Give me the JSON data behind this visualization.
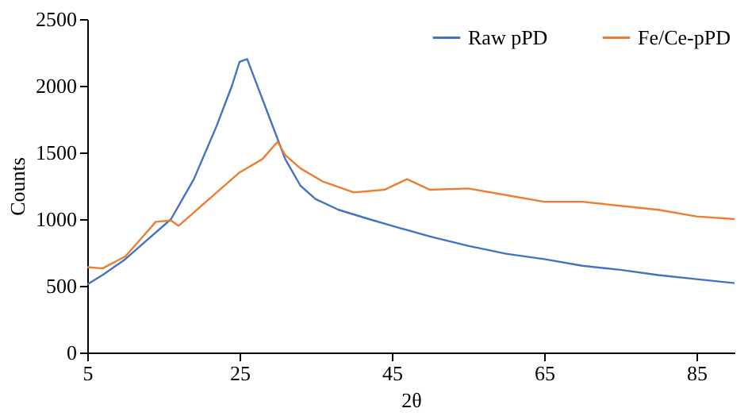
{
  "chart_data": {
    "type": "line",
    "xlabel": "2θ",
    "ylabel": "Counts",
    "xlim": [
      5,
      90
    ],
    "xticks": [
      5,
      25,
      45,
      65,
      85
    ],
    "ylim": [
      0,
      2500
    ],
    "yticks": [
      0,
      500,
      1000,
      1500,
      2000,
      2500
    ],
    "grid": false,
    "legend": "top right",
    "marker": "none",
    "line_style": "solid",
    "series": [
      {
        "name": "Raw pPD",
        "color": "#4472c4",
        "x": [
          5,
          7,
          10,
          13,
          16,
          19,
          22,
          24,
          25,
          26,
          27,
          29,
          31,
          33,
          35,
          38,
          42,
          45,
          50,
          55,
          60,
          65,
          70,
          75,
          80,
          85,
          90
        ],
        "values": [
          510,
          580,
          700,
          850,
          1000,
          1300,
          1700,
          2000,
          2180,
          2200,
          2050,
          1750,
          1450,
          1250,
          1150,
          1070,
          1000,
          950,
          870,
          800,
          740,
          700,
          650,
          620,
          580,
          550,
          520
        ]
      },
      {
        "name": "Fe/Ce-pPD",
        "color": "#ed7d31",
        "x": [
          5,
          7,
          10,
          12,
          14,
          16,
          17,
          19,
          22,
          25,
          28,
          30,
          31,
          33,
          36,
          40,
          44,
          47,
          50,
          55,
          60,
          65,
          70,
          75,
          80,
          85,
          90
        ],
        "values": [
          640,
          630,
          720,
          850,
          980,
          990,
          950,
          1050,
          1200,
          1350,
          1450,
          1580,
          1480,
          1380,
          1280,
          1200,
          1220,
          1300,
          1220,
          1230,
          1180,
          1130,
          1130,
          1100,
          1070,
          1020,
          1000
        ]
      }
    ]
  }
}
